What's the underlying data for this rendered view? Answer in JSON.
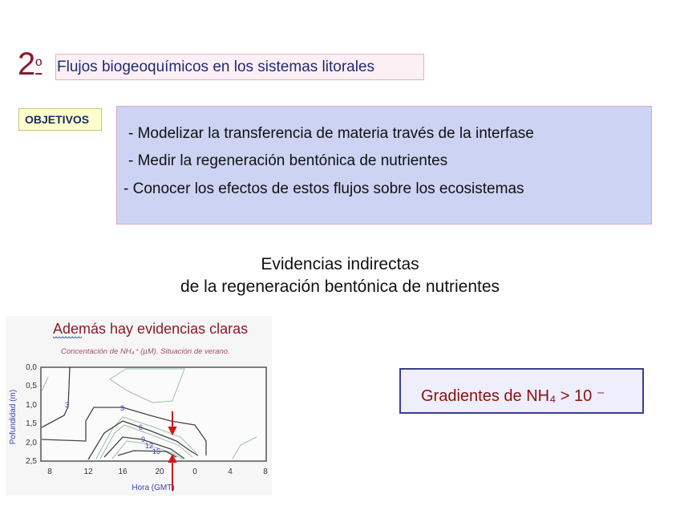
{
  "section": {
    "number": "2",
    "ordinal": "º",
    "title": "Flujos biogeoquímicos en los sistemas litorales"
  },
  "objectives": {
    "label": "OBJETIVOS",
    "items": [
      "-  Modelizar la transferencia de materia través de la interfase",
      "-  Medir la regeneración bentónica de nutrientes",
      "- Conocer los efectos de estos flujos sobre los ecosistemas"
    ]
  },
  "subtitle": {
    "line1": "Evidencias indirectas",
    "line2": "de la regeneración bentónica de nutrientes"
  },
  "figure": {
    "heading": "Además hay evidencias claras",
    "caption": "Concentación de NH₄⁺ (µM). Situación de verano.",
    "ylabel": "Pofundidad (m)",
    "xlabel": "Hora (GMT)",
    "yticks": [
      "0,0",
      "0,5",
      "1,0",
      "1,5",
      "2,0",
      "2,5"
    ],
    "xticks": [
      "8",
      "12",
      "16",
      "20",
      "0",
      "4",
      "8"
    ],
    "contour_labels": [
      "3",
      "3",
      "6",
      "9",
      "12",
      "15"
    ],
    "colors": {
      "heading": "#8b1a2a",
      "axis_labels": "#3a3fb0",
      "arrows": "#d01818"
    }
  },
  "gradient_note": "Gradientes de NH₄ > 10 ⁻"
}
